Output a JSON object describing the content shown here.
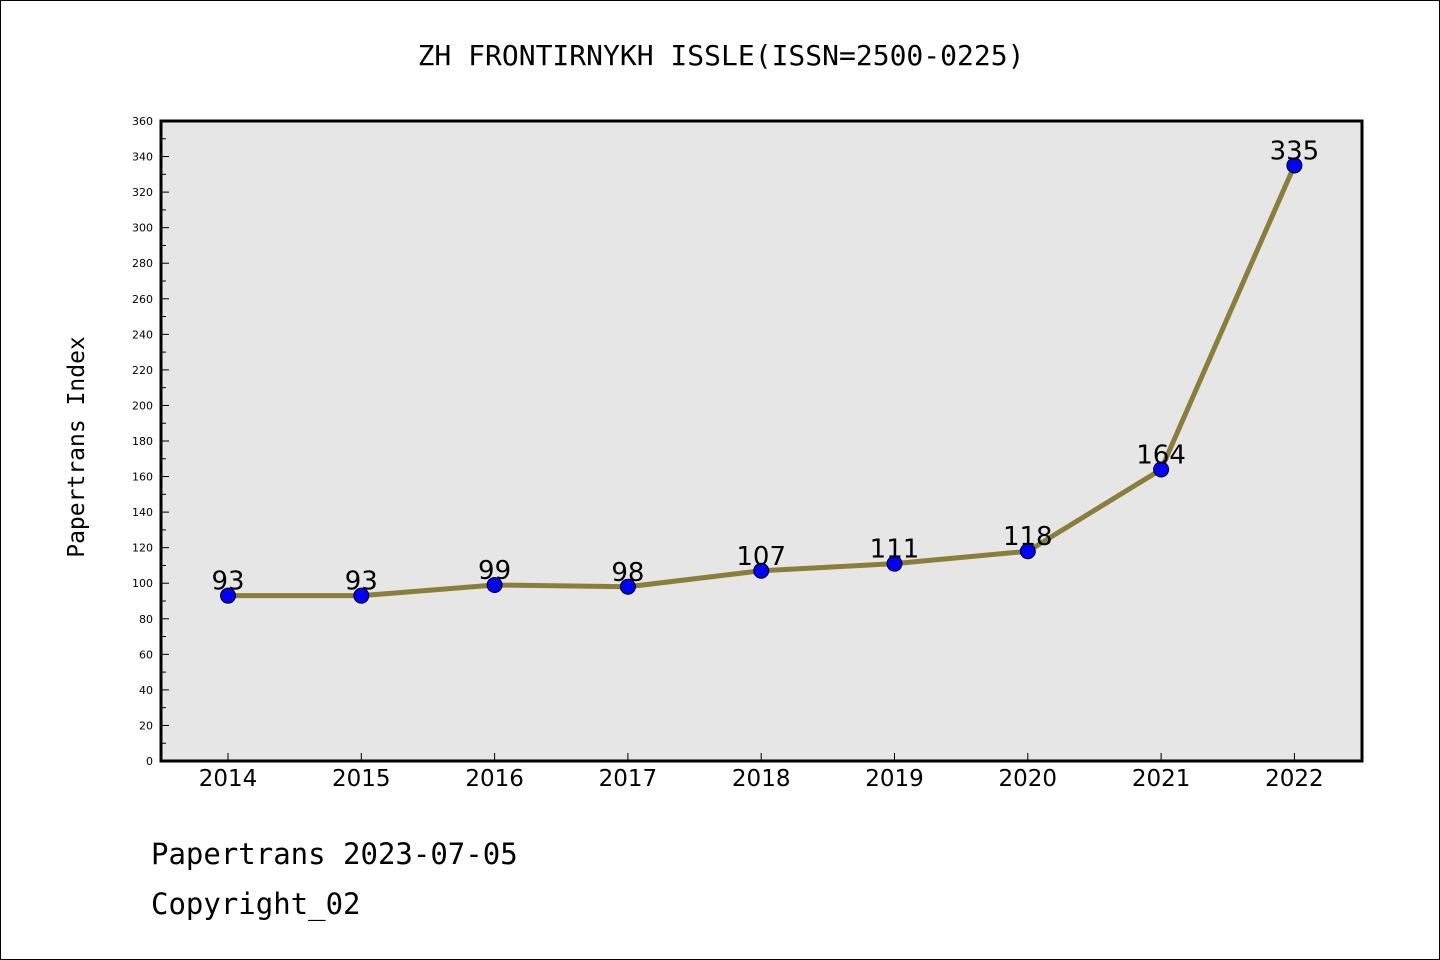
{
  "chart_data": {
    "type": "line",
    "title": "ZH FRONTIRNYKH ISSLE(ISSN=2500-0225)",
    "xlabel": "",
    "ylabel": "Papertrans Index",
    "categories": [
      "2014",
      "2015",
      "2016",
      "2017",
      "2018",
      "2019",
      "2020",
      "2021",
      "2022"
    ],
    "series": [
      {
        "values": [
          93,
          93,
          99,
          98,
          107,
          111,
          118,
          164,
          335
        ],
        "line_color": "#8b7d3a",
        "marker_color": "#0000ff"
      }
    ],
    "ylim": [
      0,
      360
    ],
    "yticks": [
      0,
      20,
      40,
      60,
      80,
      100,
      120,
      140,
      160,
      180,
      200,
      220,
      240,
      260,
      280,
      300,
      320,
      340,
      360
    ],
    "data_labels": true,
    "grid": false,
    "legend": "none",
    "plot_background": "#e6e6e6"
  },
  "footer": {
    "date_line": "Papertrans 2023-07-05",
    "copyright_line": "Copyright_02"
  }
}
